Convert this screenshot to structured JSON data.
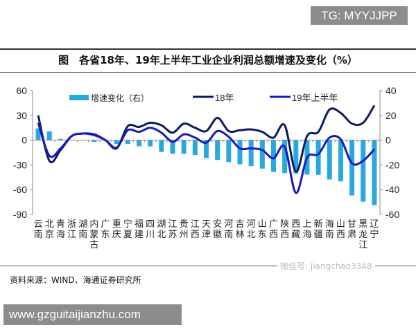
{
  "watermark_top": "TG: MYYJJPP",
  "watermark_bottom": "www.gzguitaijianzhu.com",
  "watermark_wechat": "微信号: jiangchao3348",
  "title": "图　各省18年、19年上半年工业企业利润总额增速及变化（%）",
  "source": "资料来源：WIND、海通证券研究所",
  "chart_data": {
    "type": "bar+line",
    "categories": [
      "云南",
      "北京",
      "青海",
      "浙江",
      "湖南",
      "内蒙古",
      "广东",
      "重庆",
      "宁夏",
      "福建",
      "四川",
      "湖北",
      "江苏",
      "贵州",
      "江西",
      "天津",
      "安徽",
      "河南",
      "吉林",
      "河北",
      "山东",
      "广西",
      "陕西",
      "西藏",
      "上海",
      "新疆",
      "海南",
      "山西",
      "甘肃",
      "黑龙江",
      "辽宁"
    ],
    "left_axis": {
      "ylim": [
        -90,
        60
      ],
      "ticks": [
        60,
        30,
        0,
        -30,
        -60,
        -90
      ]
    },
    "right_axis": {
      "ylim": [
        -60,
        40
      ],
      "ticks": [
        40,
        20,
        0,
        -20,
        -40,
        -60
      ]
    },
    "legend_placement": "top",
    "series": [
      {
        "name": "增速变化（右）",
        "type": "bar",
        "axis": "right",
        "color": "#29a8e0",
        "values": [
          9.5,
          7,
          1,
          0,
          0,
          -1.5,
          0,
          -3,
          -3,
          -5,
          -5,
          -9.5,
          -11,
          -11,
          -12,
          -14.5,
          -16,
          -17.7,
          -19.5,
          -21,
          -23,
          -25.7,
          -26.6,
          -27,
          -27.8,
          -28,
          -31.8,
          -33.3,
          -44.7,
          -49.7,
          -52.5
        ]
      },
      {
        "name": "18年",
        "type": "line",
        "axis": "left",
        "color": "#0d1a5e",
        "values": [
          30,
          -25,
          -12,
          5,
          8,
          7,
          0,
          -10,
          17,
          16,
          21,
          18,
          9,
          20,
          15,
          11,
          27,
          11,
          12,
          13,
          10,
          3,
          18,
          -38,
          5,
          10,
          37,
          33,
          20,
          21,
          42
        ]
      },
      {
        "name": "19年上半年",
        "type": "line",
        "axis": "left",
        "color": "#1a1ab8",
        "values": [
          21,
          -19,
          -10,
          5,
          8,
          6,
          0,
          -9,
          12,
          10,
          15,
          9,
          -2,
          7,
          3,
          -3,
          11,
          4,
          -10,
          -10,
          -12,
          -22,
          -8,
          -64,
          -21,
          -17,
          3,
          1,
          -28,
          -25,
          -11
        ]
      }
    ]
  }
}
